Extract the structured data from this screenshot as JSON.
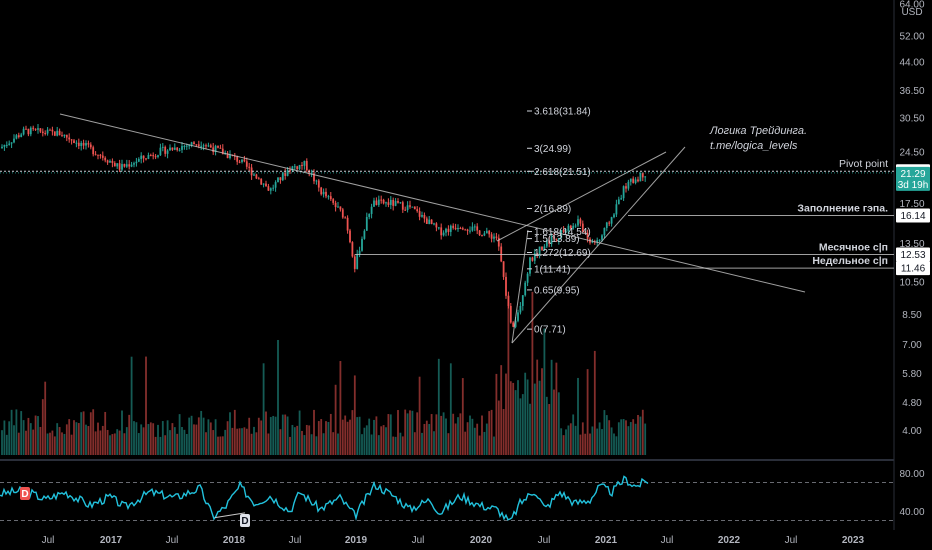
{
  "currency": "USD",
  "chart_data": {
    "type": "candlestick",
    "ylog": true,
    "price_axis": [
      "64.00",
      "52.00",
      "44.00",
      "36.50",
      "30.50",
      "24.50",
      "17.50",
      "13.50",
      "10.50",
      "8.50",
      "7.00",
      "5.80",
      "4.80",
      "4.00"
    ],
    "time_axis": [
      "Jul",
      "2017",
      "Jul",
      "2018",
      "Jul",
      "2019",
      "Jul",
      "2020",
      "Jul",
      "2021",
      "Jul",
      "2022",
      "Jul",
      "2023"
    ],
    "fib_levels": [
      {
        "ratio": "3.618",
        "value": 31.84,
        "label": "3.618(31.84)"
      },
      {
        "ratio": "3",
        "value": 24.99,
        "label": "3(24.99)"
      },
      {
        "ratio": "2.618",
        "value": 21.51,
        "label": "2.618(21.51)"
      },
      {
        "ratio": "2",
        "value": 16.89,
        "label": "2(16.89)"
      },
      {
        "ratio": "1.618",
        "value": 14.54,
        "label": "1.618(14.54)"
      },
      {
        "ratio": "1.5",
        "value": 13.89,
        "label": "1.5(13.89)"
      },
      {
        "ratio": "1.272",
        "value": 12.69,
        "label": "1.272(12.69)"
      },
      {
        "ratio": "1",
        "value": 11.41,
        "label": "1(11.41)"
      },
      {
        "ratio": "0.65",
        "value": 9.95,
        "label": "0.65(9.95)"
      },
      {
        "ratio": "0",
        "value": 7.71,
        "label": "0(7.71)"
      }
    ],
    "level_tags": [
      {
        "label": "Pivot point",
        "value": "21.53",
        "bg": "#ffffff",
        "fg": "#131722"
      },
      {
        "label": "Заполнение гэпа.",
        "value": "16.14",
        "bg": "#ffffff",
        "fg": "#131722"
      },
      {
        "label": "Месячное с|п",
        "value": "12.53",
        "bg": "#ffffff",
        "fg": "#131722"
      },
      {
        "label": "Недельное с|п",
        "value": "11.46",
        "bg": "#ffffff",
        "fg": "#131722"
      }
    ],
    "last_price": {
      "value": "21.29",
      "countdown": "3d 19h",
      "bg": "#26a69a"
    },
    "rsi_axis": [
      "80.00",
      "40.00"
    ],
    "divergence_markers": [
      "D",
      "D"
    ],
    "colors": {
      "up": "#26a69a",
      "down": "#ef5350",
      "rsi": "#22c1dc",
      "lines": "#c8c8c8"
    }
  },
  "annotation": {
    "line1": "Логика Трейдинга.",
    "line2": "t.me/logica_levels"
  }
}
